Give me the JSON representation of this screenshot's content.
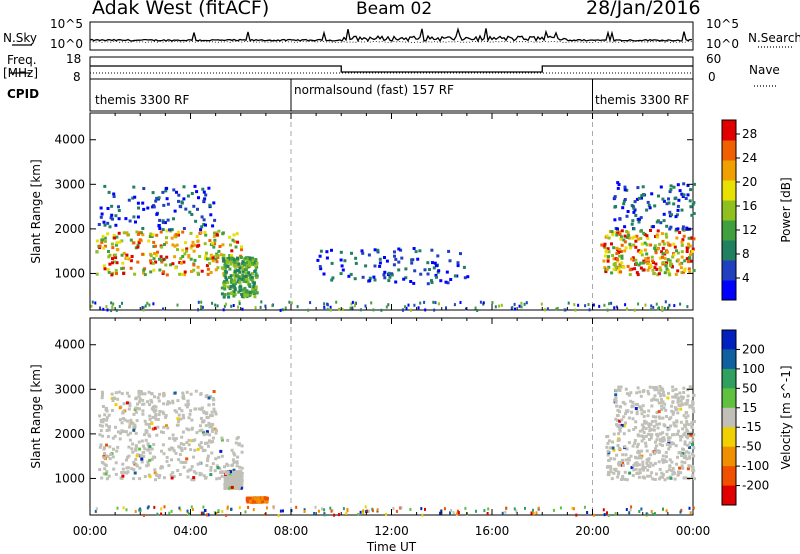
{
  "header": {
    "title": "Adak West (fitACF)",
    "beam": "Beam 02",
    "date": "28/Jan/2016"
  },
  "top_panels": {
    "nsky_label": "N.Sky",
    "nsky_ticks": [
      "10^5",
      "10^0"
    ],
    "nsearch_label": "N.Search",
    "nsearch_ticks": [
      "10^5",
      "10^0"
    ],
    "freq_label": "Freq.",
    "freq_unit": "[MHz]",
    "freq_ticks": [
      "18",
      "8"
    ],
    "nave_label": "Nave",
    "nave_ticks": [
      "60",
      "0"
    ],
    "cpid_label": "CPID",
    "cpid_segments": [
      "themis 3300 RF",
      "normalsound (fast) 157 RF",
      "themis 3300 RF"
    ]
  },
  "chart_data": [
    {
      "type": "heatmap",
      "title": "",
      "xlabel": "Time UT",
      "ylabel": "Slant Range [km]",
      "xlim": [
        0,
        24
      ],
      "ylim": [
        180,
        4600
      ],
      "x_ticks": [
        "00:00",
        "04:00",
        "08:00",
        "12:00",
        "16:00",
        "20:00",
        "00:00"
      ],
      "y_ticks": [
        "1000",
        "2000",
        "3000",
        "4000"
      ],
      "colorbar": {
        "label": "Power [dB]",
        "ticks": [
          "4",
          "8",
          "12",
          "16",
          "20",
          "24",
          "28"
        ],
        "range": [
          0,
          30
        ],
        "colors": [
          "#0000ff",
          "#2040c0",
          "#208060",
          "#40a040",
          "#90c020",
          "#e8e000",
          "#f0a000",
          "#f06000",
          "#e00000"
        ]
      },
      "echo_regions": [
        {
          "t": [
            0.2,
            6.0
          ],
          "range": [
            1000,
            2000
          ],
          "level": "strong"
        },
        {
          "t": [
            0.3,
            5.0
          ],
          "range": [
            2000,
            3000
          ],
          "level": "weak"
        },
        {
          "t": [
            5.2,
            6.6
          ],
          "range": [
            500,
            1400
          ],
          "level": "moderate"
        },
        {
          "t": [
            9.0,
            15.0
          ],
          "range": [
            800,
            1600
          ],
          "level": "weak"
        },
        {
          "t": [
            20.3,
            24.0
          ],
          "range": [
            1000,
            2000
          ],
          "level": "strong"
        },
        {
          "t": [
            20.8,
            24.0
          ],
          "range": [
            2000,
            3100
          ],
          "level": "weak"
        }
      ]
    },
    {
      "type": "heatmap",
      "title": "",
      "xlabel": "Time UT",
      "ylabel": "Slant Range [km]",
      "xlim": [
        0,
        24
      ],
      "ylim": [
        180,
        4600
      ],
      "x_ticks": [
        "00:00",
        "04:00",
        "08:00",
        "12:00",
        "16:00",
        "20:00",
        "00:00"
      ],
      "y_ticks": [
        "1000",
        "2000",
        "3000",
        "4000"
      ],
      "colorbar": {
        "label": "Velocity [m s^-1]",
        "ticks": [
          "200",
          "100",
          "50",
          "15",
          "-15",
          "-50",
          "-100",
          "-200"
        ],
        "range": [
          -250,
          250
        ],
        "colors": [
          "#0020c0",
          "#1060a0",
          "#30a060",
          "#60c040",
          "#c0c0b8",
          "#f0d000",
          "#f09000",
          "#f05000",
          "#e00000"
        ]
      },
      "echo_regions": [
        {
          "t": [
            0.3,
            6.0
          ],
          "range": [
            1000,
            2000
          ],
          "level": "ground-scatter"
        },
        {
          "t": [
            0.3,
            5.0
          ],
          "range": [
            2000,
            3000
          ],
          "level": "ground-scatter"
        },
        {
          "t": [
            5.3,
            6.0
          ],
          "range": [
            800,
            1200
          ],
          "level": "ground-scatter"
        },
        {
          "t": [
            6.2,
            7.0
          ],
          "range": [
            500,
            600
          ],
          "level": "negative"
        },
        {
          "t": [
            20.5,
            24.0
          ],
          "range": [
            1000,
            2000
          ],
          "level": "ground-scatter"
        },
        {
          "t": [
            20.8,
            24.0
          ],
          "range": [
            2000,
            3100
          ],
          "level": "ground-scatter"
        }
      ]
    }
  ]
}
